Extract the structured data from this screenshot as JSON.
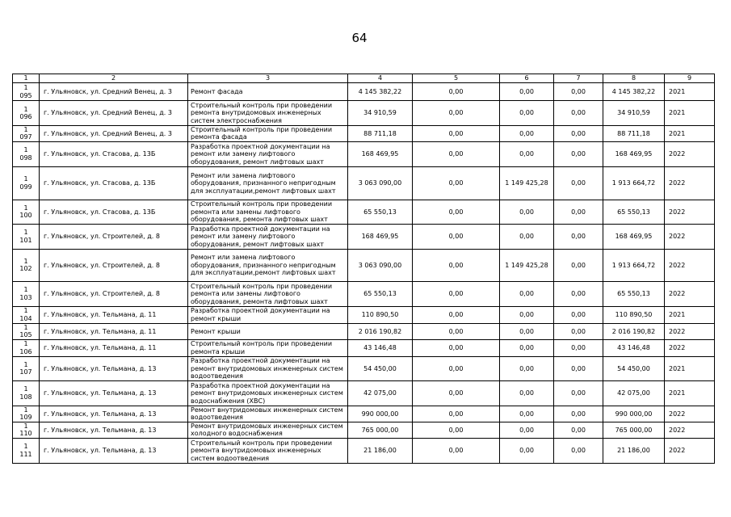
{
  "page_number": "64",
  "table": {
    "headers": [
      "1",
      "2",
      "3",
      "4",
      "5",
      "6",
      "7",
      "8",
      "9"
    ],
    "rows": [
      {
        "no_a": "1",
        "no_b": "095",
        "address": "г. Ульяновск, ул. Средний Венец, д. 3",
        "work": "Ремонт фасада",
        "c4": "4 145 382,22",
        "c5": "0,00",
        "c6": "0,00",
        "c7": "0,00",
        "c8": "4 145 382,22",
        "year": "2021"
      },
      {
        "no_a": "1",
        "no_b": "096",
        "address": "г. Ульяновск, ул. Средний Венец, д. 3",
        "work": "Строительный контроль при проведении ремонта внутридомовых инженерных систем электроснабжения",
        "c4": "34 910,59",
        "c5": "0,00",
        "c6": "0,00",
        "c7": "0,00",
        "c8": "34 910,59",
        "year": "2021"
      },
      {
        "no_a": "1",
        "no_b": "097",
        "address": "г. Ульяновск, ул. Средний Венец, д. 3",
        "work": "Строительный контроль при проведении ремонта фасада",
        "c4": "88 711,18",
        "c5": "0,00",
        "c6": "0,00",
        "c7": "0,00",
        "c8": "88 711,18",
        "year": "2021"
      },
      {
        "no_a": "1",
        "no_b": "098",
        "address": "г. Ульяновск, ул. Стасова, д. 13Б",
        "work": "Разработка проектной документации на ремонт или замену лифтового оборудования, ремонт лифтовых шахт",
        "c4": "168 469,95",
        "c5": "0,00",
        "c6": "0,00",
        "c7": "0,00",
        "c8": "168 469,95",
        "year": "2022"
      },
      {
        "no_a": "1",
        "no_b": "099",
        "address": "г. Ульяновск, ул. Стасова, д. 13Б",
        "work": "Ремонт или замена лифтового оборудования, признанного непригодным для эксплуатации,ремонт лифтовых шахт",
        "c4": "3 063 090,00",
        "c5": "0,00",
        "c6": "1 149 425,28",
        "c7": "0,00",
        "c8": "1 913 664,72",
        "year": "2022"
      },
      {
        "no_a": "1",
        "no_b": "100",
        "address": "г. Ульяновск, ул. Стасова, д. 13Б",
        "work": "Строительный контроль при проведении ремонта или замены лифтового оборудования, ремонта лифтовых шахт",
        "c4": "65 550,13",
        "c5": "0,00",
        "c6": "0,00",
        "c7": "0,00",
        "c8": "65 550,13",
        "year": "2022"
      },
      {
        "no_a": "1",
        "no_b": "101",
        "address": "г. Ульяновск, ул. Строителей, д. 8",
        "work": "Разработка проектной документации на ремонт или замену лифтового оборудования, ремонт лифтовых шахт",
        "c4": "168 469,95",
        "c5": "0,00",
        "c6": "0,00",
        "c7": "0,00",
        "c8": "168 469,95",
        "year": "2022"
      },
      {
        "no_a": "1",
        "no_b": "102",
        "address": "г. Ульяновск, ул. Строителей, д. 8",
        "work": "Ремонт или замена лифтового оборудования, признанного непригодным для эксплуатации,ремонт лифтовых шахт",
        "c4": "3 063 090,00",
        "c5": "0,00",
        "c6": "1 149 425,28",
        "c7": "0,00",
        "c8": "1 913 664,72",
        "year": "2022"
      },
      {
        "no_a": "1",
        "no_b": "103",
        "address": "г. Ульяновск, ул. Строителей, д. 8",
        "work": "Строительный контроль при проведении ремонта или замены лифтового оборудования, ремонта лифтовых шахт",
        "c4": "65 550,13",
        "c5": "0,00",
        "c6": "0,00",
        "c7": "0,00",
        "c8": "65 550,13",
        "year": "2022"
      },
      {
        "no_a": "1",
        "no_b": "104",
        "address": "г. Ульяновск, ул. Тельмана, д. 11",
        "work": "Разработка проектной документации на ремонт крыши",
        "c4": "110 890,50",
        "c5": "0,00",
        "c6": "0,00",
        "c7": "0,00",
        "c8": "110 890,50",
        "year": "2021"
      },
      {
        "no_a": "1",
        "no_b": "105",
        "address": "г. Ульяновск, ул. Тельмана, д. 11",
        "work": "Ремонт крыши",
        "c4": "2 016 190,82",
        "c5": "0,00",
        "c6": "0,00",
        "c7": "0,00",
        "c8": "2 016 190,82",
        "year": "2022"
      },
      {
        "no_a": "1",
        "no_b": "106",
        "address": "г. Ульяновск, ул. Тельмана, д. 11",
        "work": "Строительный контроль при проведении ремонта крыши",
        "c4": "43 146,48",
        "c5": "0,00",
        "c6": "0,00",
        "c7": "0,00",
        "c8": "43 146,48",
        "year": "2022"
      },
      {
        "no_a": "1",
        "no_b": "107",
        "address": "г. Ульяновск, ул. Тельмана, д. 13",
        "work": "Разработка проектной документации на ремонт внутридомовых инженерных систем водоотведения",
        "c4": "54 450,00",
        "c5": "0,00",
        "c6": "0,00",
        "c7": "0,00",
        "c8": "54 450,00",
        "year": "2021"
      },
      {
        "no_a": "1",
        "no_b": "108",
        "address": "г. Ульяновск, ул. Тельмана, д. 13",
        "work": "Разработка проектной документации на ремонт внутридомовых инженерных систем водоснабжения (ХВС)",
        "c4": "42 075,00",
        "c5": "0,00",
        "c6": "0,00",
        "c7": "0,00",
        "c8": "42 075,00",
        "year": "2021"
      },
      {
        "no_a": "1",
        "no_b": "109",
        "address": "г. Ульяновск, ул. Тельмана, д. 13",
        "work": "Ремонт внутридомовых инженерных систем водоотведения",
        "c4": "990 000,00",
        "c5": "0,00",
        "c6": "0,00",
        "c7": "0,00",
        "c8": "990 000,00",
        "year": "2022"
      },
      {
        "no_a": "1",
        "no_b": "110",
        "address": "г. Ульяновск, ул. Тельмана, д. 13",
        "work": "Ремонт внутридомовых инженерных систем холодного водоснабжения",
        "c4": "765 000,00",
        "c5": "0,00",
        "c6": "0,00",
        "c7": "0,00",
        "c8": "765 000,00",
        "year": "2022"
      },
      {
        "no_a": "1",
        "no_b": "111",
        "address": "г. Ульяновск, ул. Тельмана, д. 13",
        "work": "Строительный контроль при проведении ремонта внутридомовых инженерных систем водоотведения",
        "c4": "21 186,00",
        "c5": "0,00",
        "c6": "0,00",
        "c7": "0,00",
        "c8": "21 186,00",
        "year": "2022"
      }
    ]
  }
}
